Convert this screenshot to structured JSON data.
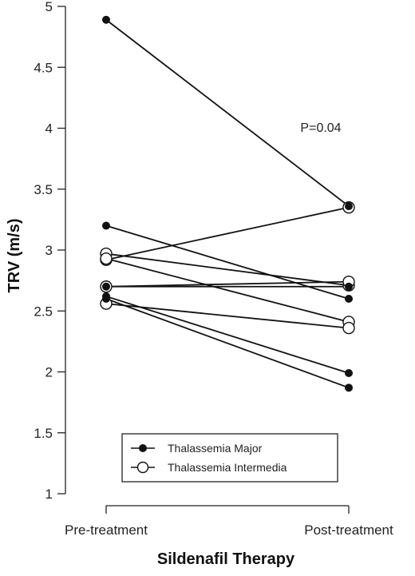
{
  "chart_data": {
    "type": "line",
    "categories": [
      "Pre-treatment",
      "Post-treatment"
    ],
    "xlabel": "Sildenafil Therapy",
    "ylabel": "TRV (m/s)",
    "ylim": [
      1,
      5
    ],
    "yticks": [
      "1",
      "1.5",
      "2",
      "2.5",
      "3",
      "3.5",
      "4",
      "4.5",
      "5"
    ],
    "annotation": "P=0.04",
    "grid": false,
    "legend_position": "bottom-center",
    "series": [
      {
        "name": "Thalassemia Major",
        "marker": "filled"
      },
      {
        "name": "Thalassemia Intermedia",
        "marker": "open"
      }
    ],
    "pairs": [
      {
        "group": "Thalassemia Major",
        "pre": 4.89,
        "post": 3.36
      },
      {
        "group": "Thalassemia Major",
        "pre": 3.2,
        "post": 2.6
      },
      {
        "group": "Thalassemia Major",
        "pre": 2.7,
        "post": 2.7
      },
      {
        "group": "Thalassemia Major",
        "pre": 2.62,
        "post": 1.99
      },
      {
        "group": "Thalassemia Major",
        "pre": 2.6,
        "post": 1.87
      },
      {
        "group": "Thalassemia Intermedia",
        "pre": 2.97,
        "post": 2.71
      },
      {
        "group": "Thalassemia Intermedia",
        "pre": 2.92,
        "post": 3.35
      },
      {
        "group": "Thalassemia Intermedia",
        "pre": 2.93,
        "post": 2.41
      },
      {
        "group": "Thalassemia Intermedia",
        "pre": 2.7,
        "post": 2.74
      },
      {
        "group": "Thalassemia Intermedia",
        "pre": 2.56,
        "post": 2.36
      }
    ],
    "colors": {
      "line": "#111111",
      "marker": "#111111",
      "open_fill": "#ffffff"
    }
  }
}
